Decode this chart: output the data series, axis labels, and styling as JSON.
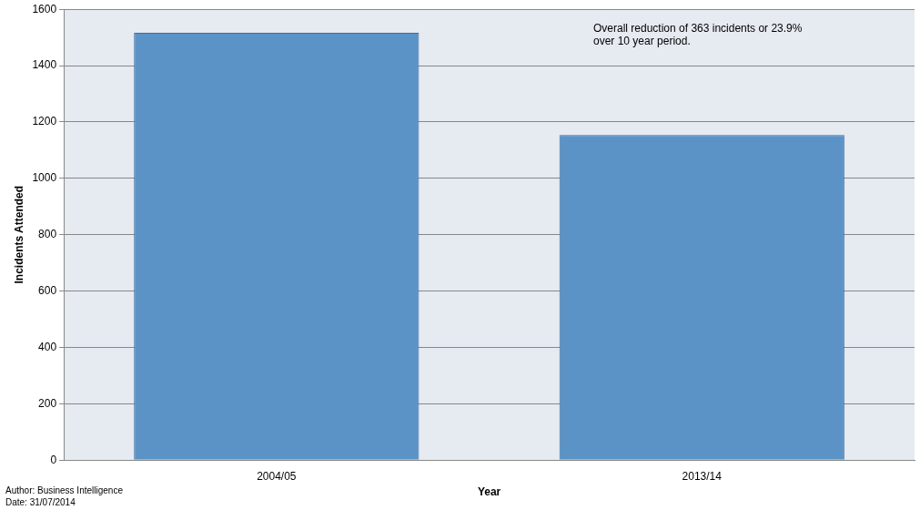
{
  "chart_data": {
    "type": "bar",
    "xlabel": "Year",
    "ylabel": "Incidents Attended",
    "categories": [
      "2004/05",
      "2013/14"
    ],
    "values": [
      1517,
      1154
    ],
    "color": "#5b93c7",
    "ylim": [
      0,
      1600
    ],
    "yticks": [
      0,
      200,
      400,
      600,
      800,
      1000,
      1200,
      1400,
      1600
    ],
    "grid": "y",
    "legend": false,
    "annotations": [
      "Overall reduction of 363 incidents or 23.9% over 10 year period.",
      "Author: Business Intelligence",
      "Date: 31/07/2014"
    ]
  }
}
